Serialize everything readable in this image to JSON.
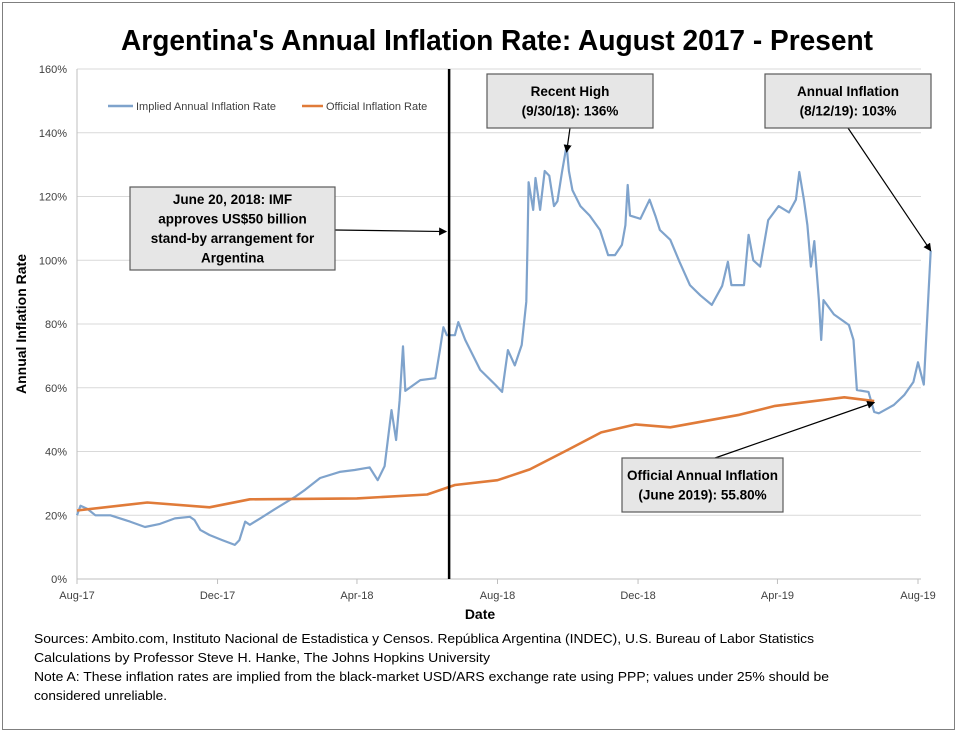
{
  "chart_data": {
    "type": "line",
    "title": "Argentina's Annual Inflation Rate: August 2017 - Present",
    "xlabel": "Date",
    "ylabel": "Annual Inflation Rate",
    "xlim": [
      "2017-08-01",
      "2019-08-01"
    ],
    "ylim": [
      0,
      160
    ],
    "x_ticks": [
      {
        "date": "2017-08-01",
        "label": "Aug-17"
      },
      {
        "date": "2017-12-01",
        "label": "Dec-17"
      },
      {
        "date": "2018-04-01",
        "label": "Apr-18"
      },
      {
        "date": "2018-08-01",
        "label": "Aug-18"
      },
      {
        "date": "2018-12-01",
        "label": "Dec-18"
      },
      {
        "date": "2019-04-01",
        "label": "Apr-19"
      },
      {
        "date": "2019-08-01",
        "label": "Aug-19"
      }
    ],
    "y_ticks": [
      {
        "value": 0,
        "label": "0%"
      },
      {
        "value": 20,
        "label": "20%"
      },
      {
        "value": 40,
        "label": "40%"
      },
      {
        "value": 60,
        "label": "60%"
      },
      {
        "value": 80,
        "label": "80%"
      },
      {
        "value": 100,
        "label": "100%"
      },
      {
        "value": 120,
        "label": "120%"
      },
      {
        "value": 140,
        "label": "140%"
      },
      {
        "value": 160,
        "label": "160%"
      }
    ],
    "grid": "horizontal",
    "legend_position": "top-left",
    "series": [
      {
        "name": "Implied Annual Inflation Rate",
        "color": "#7fa3cc",
        "points": [
          [
            "2017-08-01",
            20
          ],
          [
            "2017-08-04",
            23
          ],
          [
            "2017-08-10",
            22
          ],
          [
            "2017-08-17",
            20
          ],
          [
            "2017-08-30",
            20
          ],
          [
            "2017-09-16",
            18
          ],
          [
            "2017-09-29",
            16.3
          ],
          [
            "2017-10-12",
            17.3
          ],
          [
            "2017-10-25",
            19
          ],
          [
            "2017-11-07",
            19.5
          ],
          [
            "2017-11-11",
            18.5
          ],
          [
            "2017-11-16",
            15.4
          ],
          [
            "2017-11-24",
            13.8
          ],
          [
            "2017-12-05",
            12.2
          ],
          [
            "2017-12-16",
            10.7
          ],
          [
            "2017-12-20",
            12.2
          ],
          [
            "2017-12-25",
            18
          ],
          [
            "2017-12-29",
            17
          ],
          [
            "2018-01-07",
            19
          ],
          [
            "2018-01-20",
            22
          ],
          [
            "2018-02-06",
            25.7
          ],
          [
            "2018-02-15",
            28
          ],
          [
            "2018-02-28",
            31.7
          ],
          [
            "2018-03-17",
            33.6
          ],
          [
            "2018-03-30",
            34.2
          ],
          [
            "2018-04-12",
            35
          ],
          [
            "2018-04-19",
            31
          ],
          [
            "2018-04-25",
            35.4
          ],
          [
            "2018-05-01",
            53
          ],
          [
            "2018-05-05",
            43.6
          ],
          [
            "2018-05-08",
            56
          ],
          [
            "2018-05-11",
            73
          ],
          [
            "2018-05-13",
            59
          ],
          [
            "2018-05-26",
            62.4
          ],
          [
            "2018-06-08",
            63
          ],
          [
            "2018-06-12",
            71.8
          ],
          [
            "2018-06-15",
            79
          ],
          [
            "2018-06-18",
            76.5
          ],
          [
            "2018-06-25",
            76.5
          ],
          [
            "2018-06-28",
            80.6
          ],
          [
            "2018-07-04",
            75
          ],
          [
            "2018-07-17",
            65.6
          ],
          [
            "2018-07-30",
            61
          ],
          [
            "2018-08-05",
            58.7
          ],
          [
            "2018-08-10",
            71.8
          ],
          [
            "2018-08-16",
            67
          ],
          [
            "2018-08-22",
            73.4
          ],
          [
            "2018-08-26",
            87
          ],
          [
            "2018-08-27",
            104.8
          ],
          [
            "2018-08-28",
            124.5
          ],
          [
            "2018-09-01",
            115.8
          ],
          [
            "2018-09-03",
            125.8
          ],
          [
            "2018-09-07",
            115.8
          ],
          [
            "2018-09-11",
            128
          ],
          [
            "2018-09-15",
            126.5
          ],
          [
            "2018-09-19",
            117
          ],
          [
            "2018-09-22",
            118.5
          ],
          [
            "2018-09-26",
            127.7
          ],
          [
            "2018-09-30",
            136
          ],
          [
            "2018-10-02",
            128
          ],
          [
            "2018-10-05",
            122
          ],
          [
            "2018-10-12",
            117
          ],
          [
            "2018-10-20",
            114
          ],
          [
            "2018-10-29",
            109.5
          ],
          [
            "2018-11-05",
            101.6
          ],
          [
            "2018-11-11",
            101.6
          ],
          [
            "2018-11-17",
            104.8
          ],
          [
            "2018-11-20",
            111
          ],
          [
            "2018-11-22",
            123.6
          ],
          [
            "2018-11-24",
            114
          ],
          [
            "2018-12-03",
            113
          ],
          [
            "2018-12-11",
            119
          ],
          [
            "2018-12-16",
            114
          ],
          [
            "2018-12-20",
            109.5
          ],
          [
            "2018-12-29",
            106.4
          ],
          [
            "2019-01-06",
            99.5
          ],
          [
            "2019-01-15",
            92.2
          ],
          [
            "2019-01-24",
            89
          ],
          [
            "2019-02-03",
            86
          ],
          [
            "2019-02-12",
            92
          ],
          [
            "2019-02-17",
            99.5
          ],
          [
            "2019-02-20",
            92.2
          ],
          [
            "2019-03-03",
            92.2
          ],
          [
            "2019-03-07",
            108
          ],
          [
            "2019-03-11",
            100
          ],
          [
            "2019-03-17",
            98
          ],
          [
            "2019-03-24",
            112.6
          ],
          [
            "2019-04-02",
            117
          ],
          [
            "2019-04-11",
            115
          ],
          [
            "2019-04-17",
            119
          ],
          [
            "2019-04-20",
            127.7
          ],
          [
            "2019-04-24",
            119
          ],
          [
            "2019-04-27",
            111
          ],
          [
            "2019-04-30",
            98
          ],
          [
            "2019-05-03",
            106
          ],
          [
            "2019-05-07",
            87.5
          ],
          [
            "2019-05-09",
            75
          ],
          [
            "2019-05-11",
            87.5
          ],
          [
            "2019-05-20",
            83
          ],
          [
            "2019-06-02",
            79.7
          ],
          [
            "2019-06-06",
            75
          ],
          [
            "2019-06-09",
            59.3
          ],
          [
            "2019-06-19",
            58.7
          ],
          [
            "2019-06-24",
            52.4
          ],
          [
            "2019-06-28",
            52
          ],
          [
            "2019-07-11",
            54.6
          ],
          [
            "2019-07-20",
            57.7
          ],
          [
            "2019-07-28",
            61.8
          ],
          [
            "2019-08-01",
            68
          ],
          [
            "2019-08-06",
            61
          ],
          [
            "2019-08-12",
            103
          ]
        ]
      },
      {
        "name": "Official Inflation Rate",
        "color": "#e07b39",
        "points": [
          [
            "2017-08-01",
            21.5
          ],
          [
            "2017-10-01",
            24
          ],
          [
            "2017-11-24",
            22.5
          ],
          [
            "2017-12-29",
            25
          ],
          [
            "2018-04-01",
            25.3
          ],
          [
            "2018-06-01",
            26.5
          ],
          [
            "2018-06-25",
            29.5
          ],
          [
            "2018-08-01",
            31
          ],
          [
            "2018-08-29",
            34.4
          ],
          [
            "2018-10-01",
            40.5
          ],
          [
            "2018-10-30",
            46
          ],
          [
            "2018-11-29",
            48.5
          ],
          [
            "2018-12-29",
            47.6
          ],
          [
            "2019-02-27",
            51.5
          ],
          [
            "2019-03-30",
            54.3
          ],
          [
            "2019-05-29",
            57
          ],
          [
            "2019-06-24",
            55.8
          ]
        ]
      }
    ],
    "event_line": {
      "date": "2018-06-20",
      "color": "#000000"
    },
    "annotations": [
      {
        "lines": [
          "June 20, 2018: IMF",
          "approves US$50 billion",
          "stand-by arrangement for",
          "Argentina"
        ],
        "target_date": "2018-06-20",
        "target_value": 109
      },
      {
        "lines": [
          "Recent High",
          "(9/30/18): 136%"
        ],
        "target_date": "2018-09-30",
        "target_value": 134
      },
      {
        "lines": [
          "Annual Inflation",
          "(8/12/19): 103%"
        ],
        "target_date": "2019-08-12",
        "target_value": 103
      },
      {
        "lines": [
          "Official Annual Inflation",
          "(June 2019): 55.80%"
        ],
        "target_date": "2019-06-24",
        "target_value": 56
      }
    ]
  },
  "footer": {
    "lines": [
      "Sources: Ambito.com, Instituto Nacional de Estadistica y Censos. República Argentina (INDEC), U.S. Bureau of Labor Statistics",
      "Calculations by Professor Steve H. Hanke, The Johns Hopkins University",
      "Note A: These inflation rates are implied from the black-market USD/ARS exchange rate using PPP; values under 25% should be",
      "considered unreliable."
    ]
  }
}
